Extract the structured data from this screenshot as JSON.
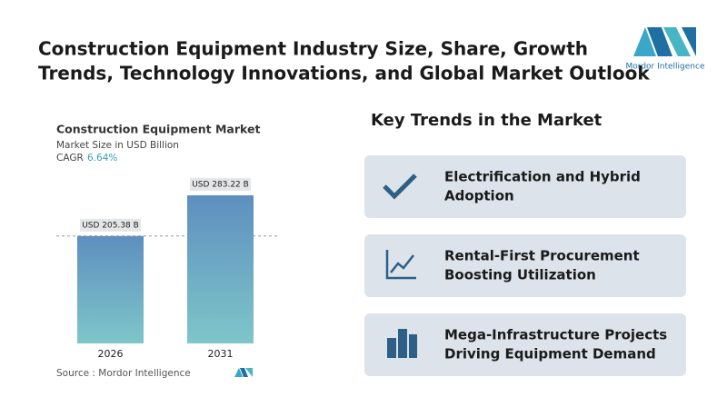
{
  "header": {
    "title_lines": [
      "Construction Equipment Industry Size, Share, Growth",
      "Trends, Technology Innovations, and Global Market Outlook"
    ],
    "logo_text": "Mordor Intelligence"
  },
  "chart_data": {
    "type": "bar",
    "title": "Construction Equipment Market",
    "subtitle": "Market Size in USD Billion",
    "cagr_label": "CAGR",
    "cagr": "6.64%",
    "categories": [
      "2026",
      "2031"
    ],
    "values": [
      205.38,
      283.22
    ],
    "value_labels": [
      "USD 205.38 B",
      "USD 283.22 B"
    ],
    "color_top": "#5e8fbf",
    "color_bottom": "#7ec6c9",
    "source": "Source : Mordor Intelligence"
  },
  "trends": {
    "heading": "Key Trends in the Market",
    "items": [
      [
        "Electrification and Hybrid",
        "Adoption"
      ],
      [
        "Rental-First Procurement",
        "Boosting Utilization"
      ],
      [
        "Mega-Infrastructure Projects",
        "Driving Equipment Demand"
      ]
    ]
  }
}
